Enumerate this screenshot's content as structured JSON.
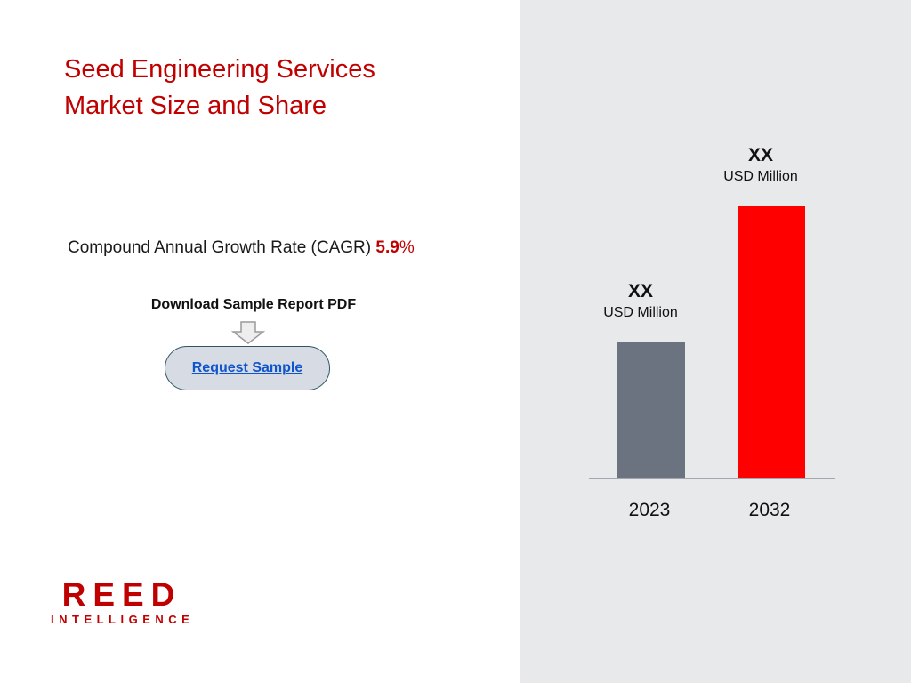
{
  "title": {
    "line1": "Seed Engineering Services",
    "line2": "Market Size and Share"
  },
  "cagr": {
    "label": "Compound Annual Growth Rate (CAGR)",
    "value": "5.9",
    "unit": "%"
  },
  "download": {
    "label": "Download Sample Report PDF",
    "button_label": "Request Sample"
  },
  "logo": {
    "main": "REED",
    "sub": "INTELLIGENCE"
  },
  "colors": {
    "accent": "#c00000",
    "bar_2023": "#6b7280",
    "bar_2032": "#ff0000",
    "panel_bg": "#e8e9eb"
  },
  "chart_data": {
    "type": "bar",
    "categories": [
      "2023",
      "2032"
    ],
    "values": [
      1,
      2
    ],
    "value_labels": [
      {
        "value": "XX",
        "unit": "USD Million"
      },
      {
        "value": "XX",
        "unit": "USD Million"
      }
    ],
    "bar_colors": [
      "#6b7280",
      "#ff0000"
    ],
    "ylim": [
      0,
      2
    ],
    "grid": false
  }
}
